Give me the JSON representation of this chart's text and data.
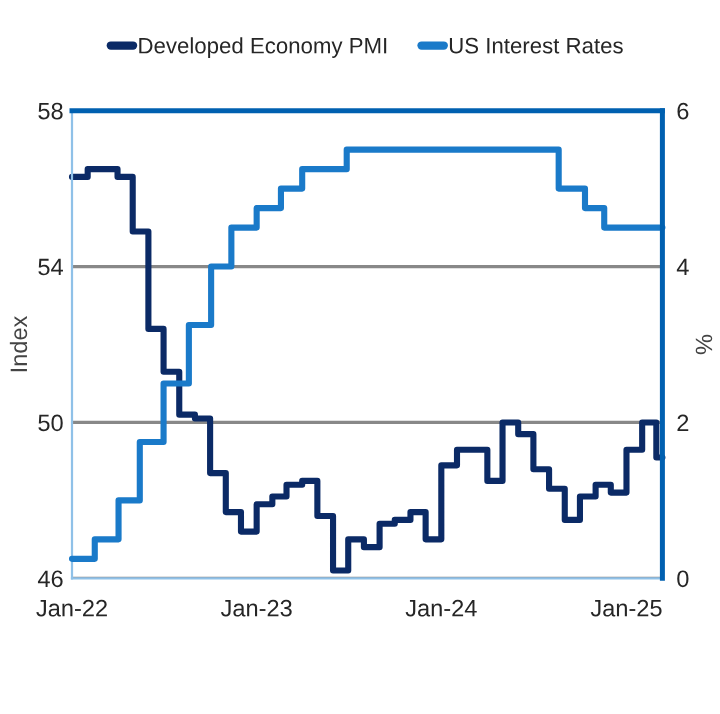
{
  "chart_data": {
    "type": "step",
    "xlabel": null,
    "ylabel": "Index",
    "y2label": "%",
    "series": [
      {
        "name": "Developed Economy PMI",
        "color": "#0b2a66",
        "x": [
          "2022-01",
          "2022-02",
          "2022-03",
          "2022-04",
          "2022-05",
          "2022-06",
          "2022-07",
          "2022-08",
          "2022-09",
          "2022-10",
          "2022-11",
          "2022-12",
          "2023-01",
          "2023-02",
          "2023-03",
          "2023-04",
          "2023-05",
          "2023-06",
          "2023-07",
          "2023-08",
          "2023-09",
          "2023-10",
          "2023-11",
          "2023-12",
          "2024-01",
          "2024-02",
          "2024-03",
          "2024-04",
          "2024-05",
          "2024-06",
          "2024-07",
          "2024-08",
          "2024-09",
          "2024-10",
          "2024-11",
          "2024-12",
          "2025-01",
          "2025-02",
          "2025-03",
          "2025-03-13"
        ],
        "values": [
          56.3,
          56.5,
          56.5,
          56.3,
          54.9,
          52.4,
          51.3,
          50.2,
          50.1,
          48.7,
          47.7,
          47.2,
          47.9,
          48.1,
          48.4,
          48.5,
          47.6,
          46.2,
          47.0,
          46.8,
          47.4,
          47.5,
          47.7,
          47.0,
          48.9,
          49.3,
          49.3,
          48.5,
          50.0,
          49.7,
          48.8,
          48.3,
          47.5,
          48.1,
          48.4,
          48.2,
          49.3,
          50.0,
          49.1,
          49.1
        ]
      },
      {
        "name": "US Interest Rates",
        "color": "#1a7ac9",
        "axis": "y2",
        "x": [
          "2022-01-01",
          "2022-02-15",
          "2022-04-03",
          "2022-05-15",
          "2022-07-01",
          "2022-08-20",
          "2022-10-03",
          "2022-11-12",
          "2023-01-01",
          "2023-02-18",
          "2023-04-01",
          "2023-06-28",
          "2024-08-20",
          "2024-10-11",
          "2024-11-18",
          "2025-03-13"
        ],
        "values": [
          0.25,
          0.5,
          1.0,
          1.75,
          2.5,
          3.25,
          4.0,
          4.5,
          4.75,
          5.0,
          5.25,
          5.5,
          5.0,
          4.75,
          4.5,
          4.5
        ]
      }
    ],
    "xlim": [
      "2022-01-01",
      "2025-03-13"
    ],
    "xticks": [
      {
        "value": "2022-01-01",
        "label": "Jan-22"
      },
      {
        "value": "2023-01-01",
        "label": "Jan-23"
      },
      {
        "value": "2024-01-01",
        "label": "Jan-24"
      },
      {
        "value": "2025-01-01",
        "label": "Jan-25"
      }
    ],
    "ylim": [
      46,
      58
    ],
    "yticks": [
      46,
      50,
      54,
      58
    ],
    "y2lim": [
      0,
      6
    ],
    "y2ticks": [
      0,
      2,
      4,
      6
    ],
    "grid": "y",
    "legend": "top",
    "line_style": "solid",
    "marker": "none"
  }
}
